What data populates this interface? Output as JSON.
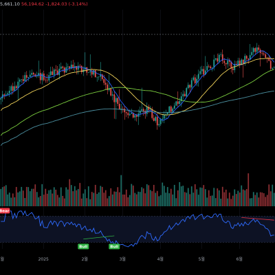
{
  "header": {
    "ohlc_left": "5,661.10",
    "close": "56,194.62",
    "change": "-1,824.03",
    "change_pct": "(-3.14%)"
  },
  "colors": {
    "up": "#26a69a",
    "down": "#ef5350",
    "ma_fast": "#2962ff",
    "ma_mid": "#f2d35a",
    "ma_slow": "#7ccf3f",
    "ma_long": "#4b8fa0",
    "rsi": "#2f6bff",
    "bear": "#f23645",
    "bull": "#2fb344"
  },
  "chart_data": [
    {
      "type": "candlestick",
      "x_axis_labels": [
        "월",
        "2025",
        "2월",
        "3월",
        "4월",
        "5월",
        "6월"
      ],
      "y_range": [
        20,
        150
      ],
      "price_path_keypoints": [
        {
          "t": 0,
          "v": 78
        },
        {
          "t": 10,
          "v": 92
        },
        {
          "t": 18,
          "v": 98
        },
        {
          "t": 26,
          "v": 95
        },
        {
          "t": 32,
          "v": 100
        },
        {
          "t": 40,
          "v": 104
        },
        {
          "t": 50,
          "v": 102
        },
        {
          "t": 58,
          "v": 97
        },
        {
          "t": 64,
          "v": 82
        },
        {
          "t": 70,
          "v": 72
        },
        {
          "t": 78,
          "v": 64
        },
        {
          "t": 86,
          "v": 70
        },
        {
          "t": 92,
          "v": 58
        },
        {
          "t": 98,
          "v": 70
        },
        {
          "t": 106,
          "v": 82
        },
        {
          "t": 114,
          "v": 96
        },
        {
          "t": 120,
          "v": 104
        },
        {
          "t": 128,
          "v": 112
        },
        {
          "t": 136,
          "v": 104
        },
        {
          "t": 142,
          "v": 110
        },
        {
          "t": 148,
          "v": 118
        },
        {
          "t": 155,
          "v": 108
        },
        {
          "t": 160,
          "v": 102
        }
      ],
      "num_candles": 160,
      "moving_averages": [
        {
          "name": "",
          "color": "#2962ff",
          "period": 7
        },
        {
          "name": "",
          "color": "#f2d35a",
          "period": 25
        },
        {
          "name": "",
          "color": "#7ccf3f",
          "period": 60
        },
        {
          "name": "",
          "color": "#4b8fa0",
          "period": 120
        }
      ]
    },
    {
      "type": "bar",
      "panel": "volume",
      "y_range": [
        0,
        100
      ]
    },
    {
      "type": "line",
      "panel": "rsi",
      "y_range": [
        20,
        80
      ],
      "bands": [
        30,
        70
      ],
      "badges": [
        {
          "label": "Bear",
          "t": 2,
          "kind": "bear"
        },
        {
          "label": "Bull",
          "t": 48,
          "kind": "bull"
        },
        {
          "label": "Bull",
          "t": 66,
          "kind": "bull"
        }
      ]
    }
  ]
}
